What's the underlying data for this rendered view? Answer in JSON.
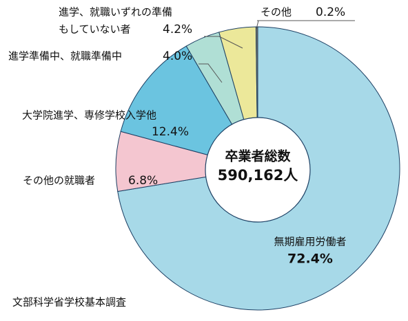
{
  "chart_data": {
    "type": "donut",
    "center_title": "卒業者総数",
    "center_value": "590,162人",
    "source": "文部科学省学校基本調査",
    "categories": [
      [
        "無期雇用労働者"
      ],
      [
        "その他の就職者"
      ],
      [
        "大学院進学、専修学校入学他"
      ],
      [
        "進学準備中、就職準備中"
      ],
      [
        "進学、就職いずれの準備",
        "もしていない者"
      ],
      [
        "その他"
      ]
    ],
    "values": [
      72.4,
      6.8,
      12.4,
      4.0,
      4.2,
      0.2
    ],
    "value_labels": [
      "72.4%",
      "6.8%",
      "12.4%",
      "4.0%",
      "4.2%",
      "0.2%"
    ],
    "colors": [
      "#a7d9e8",
      "#f4c6d0",
      "#6bc4e0",
      "#b0dfd5",
      "#ece89a",
      "#7f7868"
    ]
  }
}
